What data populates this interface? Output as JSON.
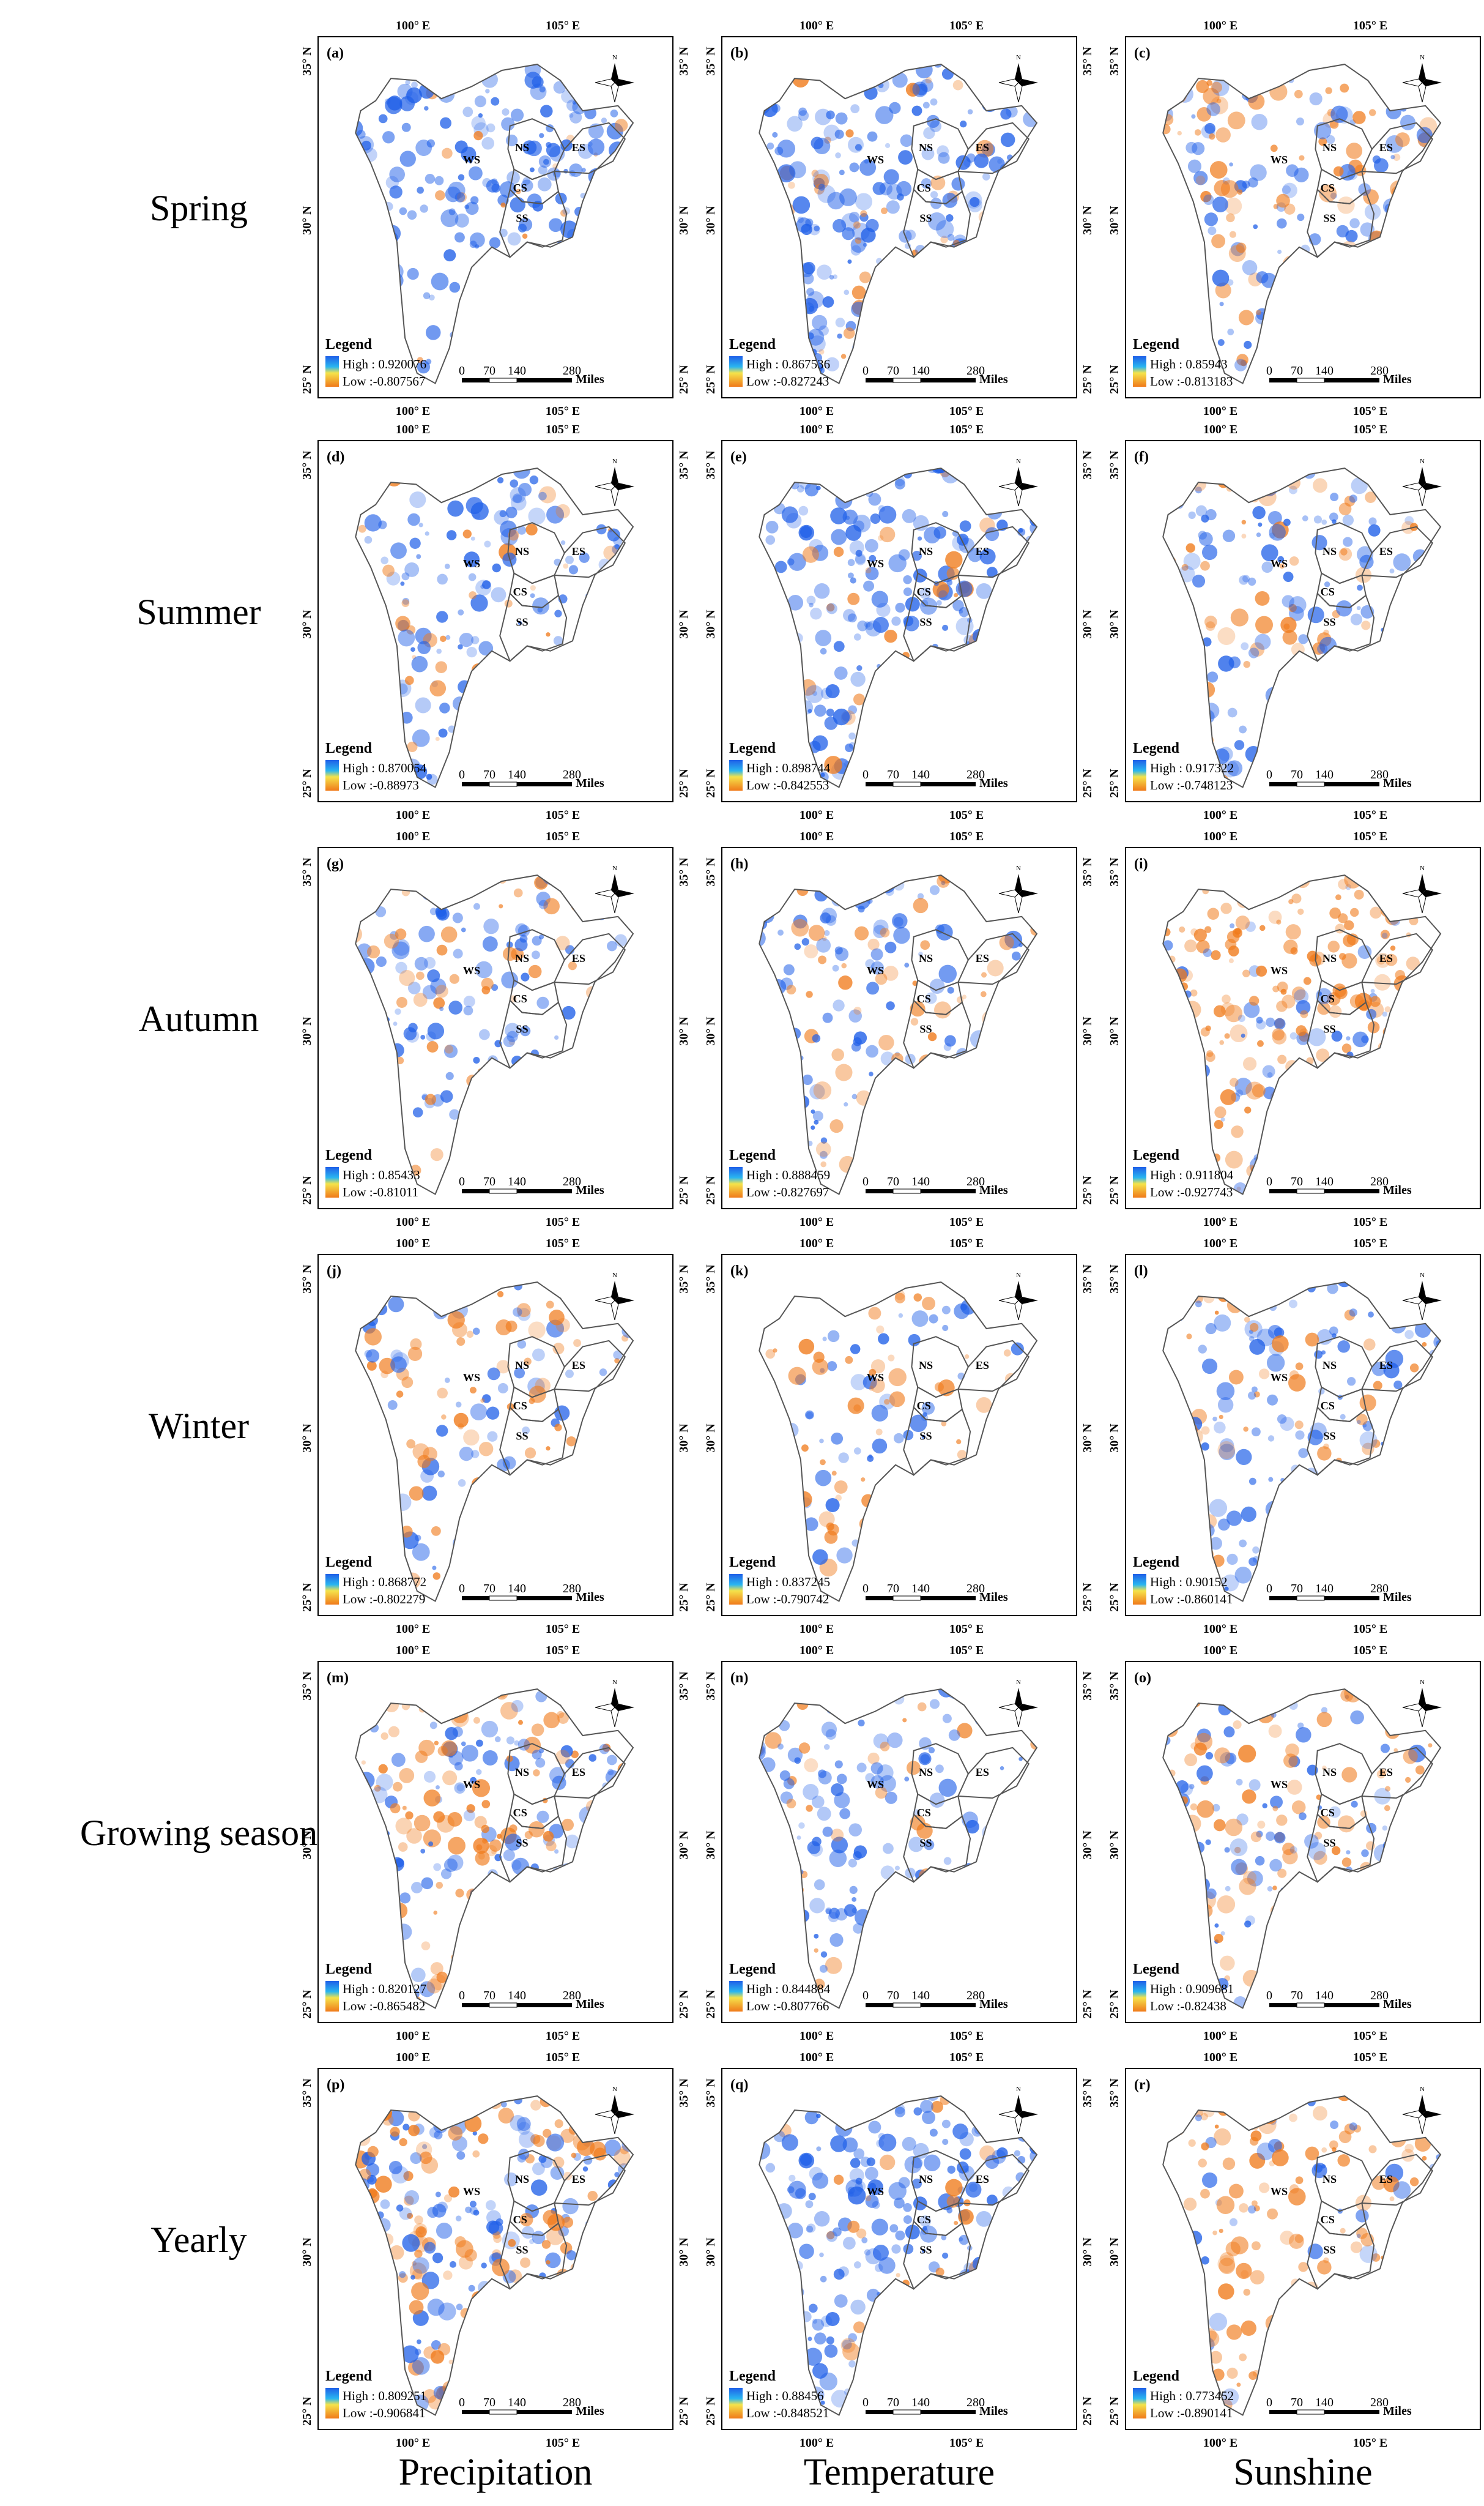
{
  "rows": [
    {
      "season": "Spring",
      "panels": [
        {
          "label": "(a)",
          "high": "High : 0.920076",
          "low": "Low :-0.807567"
        },
        {
          "label": "(b)",
          "high": "High : 0.867536",
          "low": "Low :-0.827243"
        },
        {
          "label": "(c)",
          "high": "High : 0.85943",
          "low": "Low :-0.813183"
        }
      ]
    },
    {
      "season": "Summer",
      "panels": [
        {
          "label": "(d)",
          "high": "High : 0.870054",
          "low": "Low :-0.88973"
        },
        {
          "label": "(e)",
          "high": "High : 0.898744",
          "low": "Low :-0.842553"
        },
        {
          "label": "(f)",
          "high": "High : 0.917322",
          "low": "Low :-0.748123"
        }
      ]
    },
    {
      "season": "Autumn",
      "panels": [
        {
          "label": "(g)",
          "high": "High : 0.85433",
          "low": "Low :-0.81011"
        },
        {
          "label": "(h)",
          "high": "High : 0.888459",
          "low": "Low :-0.827697"
        },
        {
          "label": "(i)",
          "high": "High : 0.911804",
          "low": "Low :-0.927743"
        }
      ]
    },
    {
      "season": "Winter",
      "panels": [
        {
          "label": "(j)",
          "high": "High : 0.868772",
          "low": "Low :-0.802279"
        },
        {
          "label": "(k)",
          "high": "High : 0.837245",
          "low": "Low :-0.790742"
        },
        {
          "label": "(l)",
          "high": "High : 0.90152",
          "low": "Low :-0.860141"
        }
      ]
    },
    {
      "season": "Growing season",
      "panels": [
        {
          "label": "(m)",
          "high": "High : 0.820127",
          "low": "Low :-0.865482"
        },
        {
          "label": "(n)",
          "high": "High : 0.844884",
          "low": "Low :-0.807766"
        },
        {
          "label": "(o)",
          "high": "High : 0.909681",
          "low": "Low :-0.82438"
        }
      ]
    },
    {
      "season": "Yearly",
      "panels": [
        {
          "label": "(p)",
          "high": "High : 0.809251",
          "low": "Low :-0.906841"
        },
        {
          "label": "(q)",
          "high": "High : 0.88456",
          "low": "Low :-0.848521"
        },
        {
          "label": "(r)",
          "high": "High : 0.773452",
          "low": "Low :-0.890141"
        }
      ]
    }
  ],
  "columns": [
    "Precipitation",
    "Temperature",
    "Sunshine"
  ],
  "axis_labels": {
    "lon_left": "100° E",
    "lon_right": "105° E",
    "lat_top": "35° N",
    "lat_mid": "30° N",
    "lat_bottom": "25° N"
  },
  "legend_title": "Legend",
  "scale_bar": {
    "ticks": [
      "0",
      "70",
      "140",
      "280"
    ],
    "unit": "Miles"
  },
  "north_arrow": "N",
  "regions": [
    "WS",
    "NS",
    "ES",
    "CS",
    "SS"
  ],
  "colors": {
    "high": "#1f5fe8",
    "low": "#f07a1a",
    "mid": "#ffffff",
    "boundary": "#555555"
  },
  "panel_fill": {
    "a": {
      "blue": 0.55,
      "orange": 0.08
    },
    "b": {
      "blue": 0.6,
      "orange": 0.12
    },
    "c": {
      "blue": 0.25,
      "orange": 0.3
    },
    "d": {
      "blue": 0.35,
      "orange": 0.12
    },
    "e": {
      "blue": 0.6,
      "orange": 0.08
    },
    "f": {
      "blue": 0.35,
      "orange": 0.2
    },
    "g": {
      "blue": 0.3,
      "orange": 0.15
    },
    "h": {
      "blue": 0.35,
      "orange": 0.15
    },
    "i": {
      "blue": 0.15,
      "orange": 0.55
    },
    "j": {
      "blue": 0.2,
      "orange": 0.2
    },
    "k": {
      "blue": 0.2,
      "orange": 0.15
    },
    "l": {
      "blue": 0.35,
      "orange": 0.15
    },
    "m": {
      "blue": 0.25,
      "orange": 0.35
    },
    "n": {
      "blue": 0.4,
      "orange": 0.1
    },
    "o": {
      "blue": 0.3,
      "orange": 0.3
    },
    "p": {
      "blue": 0.35,
      "orange": 0.4
    },
    "q": {
      "blue": 0.6,
      "orange": 0.08
    },
    "r": {
      "blue": 0.12,
      "orange": 0.4
    }
  }
}
